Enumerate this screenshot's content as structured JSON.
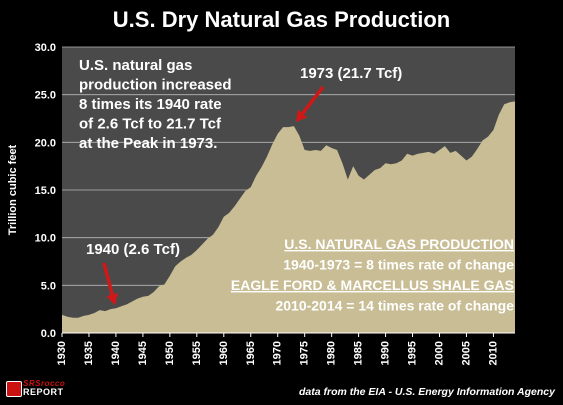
{
  "chart_data": {
    "type": "area",
    "title": "U.S. Dry Natural Gas Production",
    "ylabel": "Trillion  cubic feet",
    "xlabel": "",
    "ylim": [
      0,
      30
    ],
    "xlim": [
      1930,
      2014
    ],
    "yticks": [
      0,
      5,
      10,
      15,
      20,
      25,
      30
    ],
    "ytick_labels": [
      "0.0",
      "5.0",
      "10.0",
      "15.0",
      "20.0",
      "25.0",
      "30.0"
    ],
    "xticks": [
      1930,
      1935,
      1940,
      1945,
      1950,
      1955,
      1960,
      1965,
      1970,
      1975,
      1980,
      1985,
      1990,
      1995,
      2000,
      2005,
      2010
    ],
    "grid": true,
    "colors": {
      "fill": "#c8bd94",
      "plot_background": "#4a4a4a",
      "grid": "#b8b8b8",
      "arrow": "#d01818",
      "text": "#ffffff"
    },
    "x": [
      1930,
      1931,
      1932,
      1933,
      1934,
      1935,
      1936,
      1937,
      1938,
      1939,
      1940,
      1941,
      1942,
      1943,
      1944,
      1945,
      1946,
      1947,
      1948,
      1949,
      1950,
      1951,
      1952,
      1953,
      1954,
      1955,
      1956,
      1957,
      1958,
      1959,
      1960,
      1961,
      1962,
      1963,
      1964,
      1965,
      1966,
      1967,
      1968,
      1969,
      1970,
      1971,
      1972,
      1973,
      1974,
      1975,
      1976,
      1977,
      1978,
      1979,
      1980,
      1981,
      1982,
      1983,
      1984,
      1985,
      1986,
      1987,
      1988,
      1989,
      1990,
      1991,
      1992,
      1993,
      1994,
      1995,
      1996,
      1997,
      1998,
      1999,
      2000,
      2001,
      2002,
      2003,
      2004,
      2005,
      2006,
      2007,
      2008,
      2009,
      2010,
      2011,
      2012,
      2013,
      2014
    ],
    "values": [
      1.9,
      1.7,
      1.6,
      1.6,
      1.8,
      1.9,
      2.1,
      2.4,
      2.3,
      2.5,
      2.6,
      2.8,
      3.0,
      3.3,
      3.6,
      3.8,
      3.9,
      4.3,
      4.9,
      5.1,
      6.0,
      7.0,
      7.5,
      7.9,
      8.2,
      8.7,
      9.3,
      9.9,
      10.3,
      11.1,
      12.2,
      12.6,
      13.3,
      14.1,
      14.9,
      15.3,
      16.5,
      17.4,
      18.5,
      19.8,
      20.9,
      21.6,
      21.6,
      21.7,
      20.7,
      19.2,
      19.1,
      19.2,
      19.1,
      19.7,
      19.4,
      19.2,
      17.8,
      16.1,
      17.5,
      16.5,
      16.1,
      16.6,
      17.1,
      17.3,
      17.8,
      17.7,
      17.8,
      18.1,
      18.8,
      18.6,
      18.8,
      18.9,
      19.0,
      18.8,
      19.2,
      19.6,
      18.9,
      19.1,
      18.6,
      18.1,
      18.5,
      19.3,
      20.2,
      20.6,
      21.3,
      22.9,
      24.0,
      24.2,
      24.3
    ],
    "annotations": {
      "growth_note": [
        "U.S. natural gas",
        "production increased",
        "8 times its 1940 rate",
        "of 2.6 Tcf to 21.7 Tcf",
        "at the Peak in 1973."
      ],
      "peak_label": "1973 (21.7 Tcf)",
      "peak_point": {
        "x": 1973,
        "y": 21.7
      },
      "start_label": "1940 (2.6 Tcf)",
      "start_point": {
        "x": 1940,
        "y": 2.6
      },
      "summary": [
        {
          "text": "U.S. NATURAL GAS PRODUCTION",
          "underline": true
        },
        {
          "text": "1940-1973 = 8 times rate of change",
          "underline": false
        },
        {
          "text": "EAGLE FORD & MARCELLUS SHALE GAS",
          "underline": true
        },
        {
          "text": "2010-2014 = 14 times rate of change",
          "underline": false
        }
      ]
    }
  },
  "footer": {
    "source": "data from the EIA - U.S. Energy Information Agency",
    "logo_top": "SRSrocco",
    "logo_bottom": "REPORT"
  }
}
